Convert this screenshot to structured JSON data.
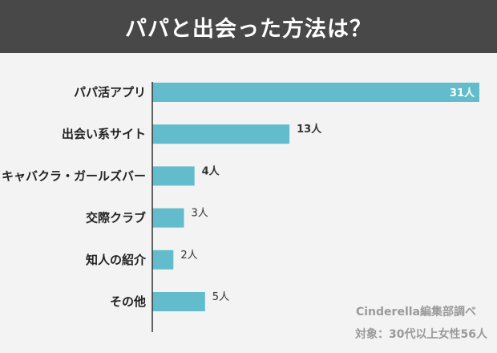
{
  "header": {
    "title": "パパと出会った方法は？"
  },
  "chart_data": {
    "type": "bar",
    "orientation": "horizontal",
    "title": "パパと出会った方法は？",
    "categories": [
      "パパ活アプリ",
      "出会い系サイト",
      "キャバクラ・ガールズバー",
      "交際クラブ",
      "知人の紹介",
      "その他"
    ],
    "values": [
      31,
      13,
      4,
      3,
      2,
      5
    ],
    "value_labels": [
      "31人",
      "13人",
      "4人",
      "3人",
      "2人",
      "5人"
    ],
    "value_label_bold": [
      true,
      true,
      true,
      false,
      false,
      false
    ],
    "xlim": [
      0,
      31
    ],
    "grid": false,
    "bar_color": "#62bccb"
  },
  "footer": {
    "source": "Cinderella編集部調べ",
    "target": "対象：30代以上女性56人"
  },
  "colors": {
    "header_bg": "#484848",
    "background": "#f3f3f3",
    "axis": "#333333"
  }
}
